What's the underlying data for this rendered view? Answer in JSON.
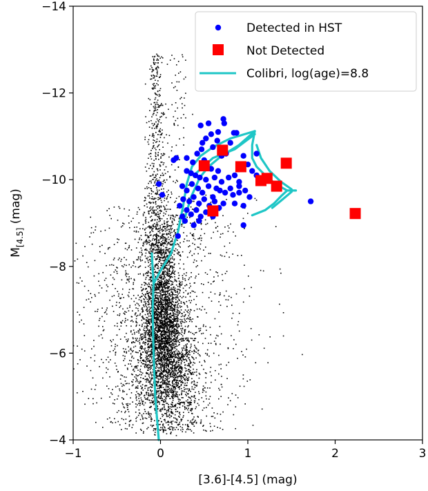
{
  "chart_data": {
    "type": "scatter",
    "xlabel": "[3.6]-[4.5] (mag)",
    "ylabel_main": "M",
    "ylabel_sub": "[4.5]",
    "ylabel_unit": " (mag)",
    "xlim": [
      -1,
      3
    ],
    "ylim": [
      -4,
      -14
    ],
    "y_inverted": true,
    "xticks": [
      -1,
      0,
      1,
      2,
      3
    ],
    "xtick_labels": [
      "−1",
      "0",
      "1",
      "2",
      "3"
    ],
    "yticks": [
      -4,
      -6,
      -8,
      -10,
      -12,
      -14
    ],
    "ytick_labels": [
      "−4",
      "−6",
      "−8",
      "−10",
      "−12",
      "−14"
    ],
    "grid": false,
    "legend_position": "top-right",
    "legend": [
      {
        "label": "Detected in HST",
        "marker": "circle",
        "color": "#0000ff"
      },
      {
        "label": "Not Detected",
        "marker": "square",
        "color": "#ff0000"
      },
      {
        "label": "Colibri, log(age)=8.8",
        "marker": "line",
        "color": "#1ec6c6"
      }
    ],
    "background_cloud": {
      "description_color": "#000000",
      "approx_points": 6000,
      "core_center": [
        0.02,
        -6.4
      ],
      "note": "dense field-star population; branch extends up to about -12.9 near x = -0.05"
    },
    "series": [
      {
        "name": "Detected in HST",
        "color": "#0000ff",
        "points": [
          [
            0.15,
            -10.45
          ],
          [
            0.18,
            -10.5
          ],
          [
            0.3,
            -10.5
          ],
          [
            0.37,
            -10.4
          ],
          [
            0.42,
            -10.6
          ],
          [
            0.5,
            -10.45
          ],
          [
            0.48,
            -10.85
          ],
          [
            0.52,
            -10.95
          ],
          [
            0.46,
            -11.25
          ],
          [
            0.55,
            -11.3
          ],
          [
            0.58,
            -11.05
          ],
          [
            0.6,
            -10.75
          ],
          [
            0.65,
            -10.9
          ],
          [
            0.7,
            -10.55
          ],
          [
            0.75,
            -10.6
          ],
          [
            0.8,
            -10.85
          ],
          [
            0.73,
            -11.3
          ],
          [
            0.72,
            -11.4
          ],
          [
            0.84,
            -11.08
          ],
          [
            0.87,
            -11.08
          ],
          [
            0.95,
            -10.55
          ],
          [
            1.0,
            -10.35
          ],
          [
            1.05,
            -10.2
          ],
          [
            1.1,
            -10.1
          ],
          [
            0.3,
            -10.2
          ],
          [
            0.35,
            -10.15
          ],
          [
            0.4,
            -10.1
          ],
          [
            0.45,
            -10.05
          ],
          [
            0.52,
            -10.0
          ],
          [
            0.58,
            -10.25
          ],
          [
            0.62,
            -10.05
          ],
          [
            0.66,
            -10.2
          ],
          [
            0.7,
            -9.95
          ],
          [
            0.78,
            -10.05
          ],
          [
            0.85,
            -10.1
          ],
          [
            0.9,
            -9.95
          ],
          [
            0.25,
            -9.85
          ],
          [
            0.3,
            -9.75
          ],
          [
            0.36,
            -9.9
          ],
          [
            0.43,
            -9.8
          ],
          [
            0.48,
            -9.7
          ],
          [
            0.55,
            -9.85
          ],
          [
            0.6,
            -9.6
          ],
          [
            0.64,
            -9.8
          ],
          [
            0.68,
            -9.75
          ],
          [
            0.74,
            -9.7
          ],
          [
            0.8,
            -9.8
          ],
          [
            0.83,
            -9.65
          ],
          [
            0.9,
            -9.7
          ],
          [
            0.97,
            -9.75
          ],
          [
            1.02,
            -9.6
          ],
          [
            0.26,
            -9.55
          ],
          [
            0.33,
            -9.5
          ],
          [
            0.38,
            -9.6
          ],
          [
            0.44,
            -9.45
          ],
          [
            0.5,
            -9.55
          ],
          [
            0.56,
            -9.4
          ],
          [
            0.62,
            -9.5
          ],
          [
            0.67,
            -9.35
          ],
          [
            0.72,
            -9.45
          ],
          [
            0.85,
            -9.45
          ],
          [
            0.95,
            -9.4
          ],
          [
            0.3,
            -9.3
          ],
          [
            0.35,
            -9.2
          ],
          [
            0.41,
            -9.3
          ],
          [
            0.46,
            -9.15
          ],
          [
            0.52,
            -9.25
          ],
          [
            0.6,
            -9.15
          ],
          [
            0.28,
            -9.05
          ],
          [
            0.38,
            -8.95
          ],
          [
            0.44,
            -9.05
          ],
          [
            0.2,
            -8.7
          ],
          [
            0.25,
            -9.15
          ],
          [
            0.22,
            -9.4
          ],
          [
            -0.02,
            -9.9
          ],
          [
            0.02,
            -9.65
          ],
          [
            0.95,
            -8.95
          ],
          [
            1.1,
            -10.6
          ],
          [
            0.66,
            -11.1
          ],
          [
            0.47,
            -10.7
          ],
          [
            0.9,
            -9.85
          ],
          [
            1.72,
            -9.5
          ]
        ]
      },
      {
        "name": "Not Detected",
        "color": "#ff0000",
        "points": [
          [
            0.5,
            -10.32
          ],
          [
            0.71,
            -10.68
          ],
          [
            0.92,
            -10.3
          ],
          [
            0.6,
            -9.28
          ],
          [
            1.15,
            -9.98
          ],
          [
            1.22,
            -10.03
          ],
          [
            1.33,
            -9.85
          ],
          [
            1.44,
            -10.38
          ],
          [
            2.23,
            -9.22
          ]
        ]
      },
      {
        "name": "Colibri, log(age)=8.8",
        "color": "#1ec6c6",
        "lines": [
          [
            [
              -0.02,
              -4.0
            ],
            [
              -0.06,
              -5.0
            ],
            [
              -0.08,
              -6.0
            ],
            [
              -0.09,
              -7.0
            ],
            [
              -0.08,
              -7.6
            ],
            [
              0.0,
              -7.9
            ],
            [
              0.12,
              -8.3
            ],
            [
              0.2,
              -8.8
            ],
            [
              0.26,
              -9.4
            ],
            [
              0.3,
              -9.9
            ],
            [
              0.36,
              -10.3
            ],
            [
              0.46,
              -10.55
            ],
            [
              0.6,
              -10.75
            ],
            [
              0.8,
              -10.95
            ],
            [
              1.08,
              -11.12
            ]
          ],
          [
            [
              -0.1,
              -8.3
            ],
            [
              -0.08,
              -7.6
            ]
          ],
          [
            [
              0.26,
              -9.0
            ],
            [
              0.35,
              -9.6
            ],
            [
              0.45,
              -10.05
            ],
            [
              0.55,
              -10.3
            ],
            [
              0.7,
              -10.55
            ],
            [
              0.9,
              -10.8
            ],
            [
              1.08,
              -11.12
            ]
          ],
          [
            [
              0.38,
              -10.1
            ],
            [
              0.6,
              -10.5
            ],
            [
              0.85,
              -10.7
            ],
            [
              1.08,
              -11.05
            ]
          ],
          [
            [
              1.08,
              -11.12
            ],
            [
              1.05,
              -10.8
            ],
            [
              1.05,
              -10.5
            ],
            [
              1.1,
              -10.3
            ],
            [
              1.2,
              -10.1
            ],
            [
              1.32,
              -9.9
            ],
            [
              1.45,
              -9.75
            ],
            [
              1.55,
              -9.75
            ]
          ],
          [
            [
              1.1,
              -10.8
            ],
            [
              1.15,
              -10.5
            ],
            [
              1.25,
              -10.2
            ],
            [
              1.38,
              -9.95
            ],
            [
              1.5,
              -9.78
            ]
          ],
          [
            [
              1.05,
              -9.18
            ],
            [
              1.2,
              -9.3
            ],
            [
              1.3,
              -9.45
            ],
            [
              1.38,
              -9.62
            ],
            [
              1.45,
              -9.75
            ]
          ],
          [
            [
              1.28,
              -9.35
            ],
            [
              1.4,
              -9.55
            ],
            [
              1.5,
              -9.72
            ]
          ]
        ]
      }
    ]
  }
}
